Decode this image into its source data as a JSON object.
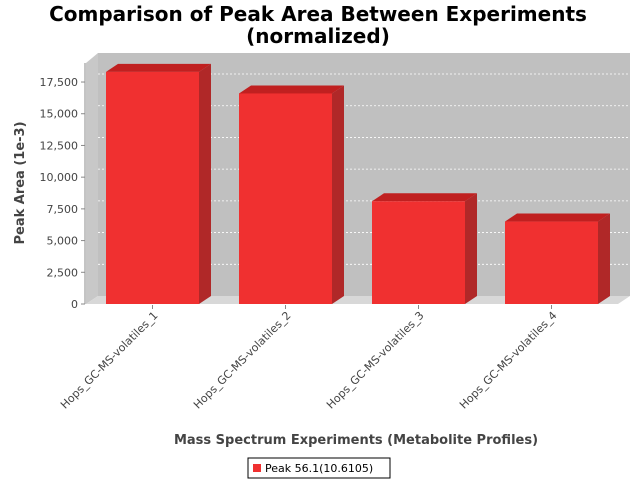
{
  "chart_data": {
    "type": "bar",
    "title_line1": "Comparison of Peak Area Between Experiments",
    "title_line2": "(normalized)",
    "xlabel": "Mass Spectrum Experiments (Metabolite Profiles)",
    "ylabel": "Peak Area (1e-3)",
    "categories": [
      "Hops_GC-MS-volatiles_1",
      "Hops_GC-MS-volatiles_2",
      "Hops_GC-MS-volatiles_3",
      "Hops_GC-MS-volatiles_4"
    ],
    "series": [
      {
        "name": "Peak 56.1(10.6105)",
        "values": [
          18300,
          16600,
          8100,
          6500
        ]
      }
    ],
    "y_ticks": [
      "0",
      "2,500",
      "5,000",
      "7,500",
      "10,000",
      "12,500",
      "15,000",
      "17,500"
    ],
    "y_tick_values": [
      0,
      2500,
      5000,
      7500,
      10000,
      12500,
      15000,
      17500
    ],
    "ylim": [
      0,
      19000
    ],
    "grid": true,
    "legend_position": "bottom",
    "colors": {
      "bar": "#f03030",
      "bar_top": "#c02020",
      "bar_side": "#b02828",
      "plot_bg": "#c0c0c0",
      "wall": "#c8c8c8",
      "floor": "#d8d8d8"
    }
  }
}
